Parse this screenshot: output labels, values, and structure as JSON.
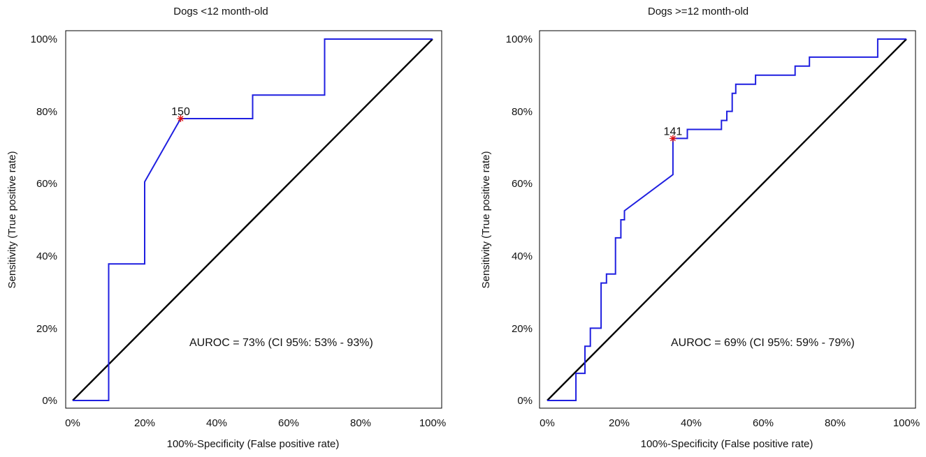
{
  "chart_data": [
    {
      "type": "line",
      "title": "Dogs <12 month-old",
      "xlabel": "100%-Specificity (False positive rate)",
      "ylabel": "Sensitivity (True positive rate)",
      "xlim": [
        0,
        100
      ],
      "ylim": [
        0,
        100
      ],
      "x_ticks": [
        "0%",
        "20%",
        "40%",
        "60%",
        "80%",
        "100%"
      ],
      "y_ticks": [
        "0%",
        "20%",
        "40%",
        "60%",
        "80%",
        "100%"
      ],
      "annotation": "AUROC = 73% (CI 95%: 53% - 93%)",
      "series": [
        {
          "name": "ROC curve",
          "color": "#1f1fe0",
          "x": [
            0,
            10,
            10,
            20,
            20,
            30,
            50,
            50,
            70,
            70,
            100
          ],
          "y": [
            0,
            0,
            37.8,
            37.8,
            60.5,
            78,
            78,
            84.5,
            84.5,
            100,
            100
          ]
        },
        {
          "name": "Reference line",
          "color": "#000000",
          "x": [
            0,
            100
          ],
          "y": [
            0,
            100
          ]
        }
      ],
      "cutoff": {
        "label": "150",
        "x": 30,
        "y": 78,
        "color": "#e01010"
      }
    },
    {
      "type": "line",
      "title": "Dogs >=12 month-old",
      "xlabel": "100%-Specificity (False positive rate)",
      "ylabel": "Sensitivity (True positive rate)",
      "xlim": [
        0,
        100
      ],
      "ylim": [
        0,
        100
      ],
      "x_ticks": [
        "0%",
        "20%",
        "40%",
        "60%",
        "80%",
        "100%"
      ],
      "y_ticks": [
        "0%",
        "20%",
        "40%",
        "60%",
        "80%",
        "100%"
      ],
      "annotation": "AUROC = 69% (CI 95%: 59% - 79%)",
      "series": [
        {
          "name": "ROC curve",
          "color": "#1f1fe0",
          "x": [
            0,
            8,
            8,
            10.5,
            10.5,
            12,
            12,
            15,
            15,
            16.5,
            16.5,
            19,
            19,
            20.5,
            20.5,
            21.5,
            21.5,
            35,
            35,
            39,
            39,
            48.5,
            48.5,
            50,
            50,
            51.5,
            51.5,
            52.5,
            52.5,
            58,
            58,
            69,
            69,
            73,
            73,
            92,
            92,
            100
          ],
          "y": [
            0,
            0,
            7.5,
            7.5,
            15,
            15,
            20,
            20,
            32.5,
            32.5,
            35,
            35,
            45,
            45,
            50,
            50,
            52.5,
            62.5,
            72.5,
            72.5,
            75,
            75,
            77.5,
            77.5,
            80,
            80,
            85,
            85,
            87.5,
            87.5,
            90,
            90,
            92.5,
            92.5,
            95,
            95,
            100,
            100
          ]
        },
        {
          "name": "Reference line",
          "color": "#000000",
          "x": [
            0,
            100
          ],
          "y": [
            0,
            100
          ]
        }
      ],
      "cutoff": {
        "label": "141",
        "x": 35,
        "y": 72.5,
        "color": "#e01010"
      }
    }
  ]
}
